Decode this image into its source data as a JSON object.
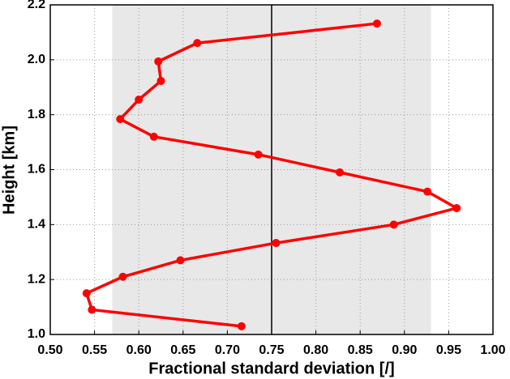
{
  "chart_data": {
    "type": "line",
    "x_label": "Fractional standard deviation [/]",
    "y_label": "Height [km]",
    "xlim": [
      0.5,
      1.0
    ],
    "ylim": [
      1.0,
      2.2
    ],
    "xticks": [
      {
        "value": 0.5,
        "label": "0.50"
      },
      0.55,
      {
        "value": 0.6,
        "label": "0.60"
      },
      0.65,
      {
        "value": 0.7,
        "label": "0.70"
      },
      0.75,
      {
        "value": 0.8,
        "label": "0.80"
      },
      0.85,
      {
        "value": 0.9,
        "label": "0.90"
      },
      0.95,
      {
        "value": 1.0,
        "label": "1.00"
      }
    ],
    "yticks": [
      {
        "value": 1.0,
        "label": "1.0"
      },
      1.2,
      1.4,
      1.6,
      1.8,
      {
        "value": 2.0,
        "label": "2.0"
      },
      2.2
    ],
    "grid": true,
    "shaded_band": [
      0.57,
      0.93
    ],
    "band_color": "#e8e8e8",
    "reference_x": 0.75,
    "series": [
      {
        "color": "#ff0000",
        "x": [
          0.716,
          0.547,
          0.541,
          0.582,
          0.647,
          0.755,
          0.888,
          0.959,
          0.926,
          0.827,
          0.735,
          0.617,
          0.579,
          0.6,
          0.625,
          0.622,
          0.666,
          0.869
        ],
        "values": [
          1.03,
          1.09,
          1.15,
          1.21,
          1.27,
          1.333,
          1.4,
          1.46,
          1.52,
          1.59,
          1.655,
          1.72,
          1.784,
          1.855,
          1.923,
          1.994,
          2.061,
          2.132
        ]
      }
    ]
  }
}
